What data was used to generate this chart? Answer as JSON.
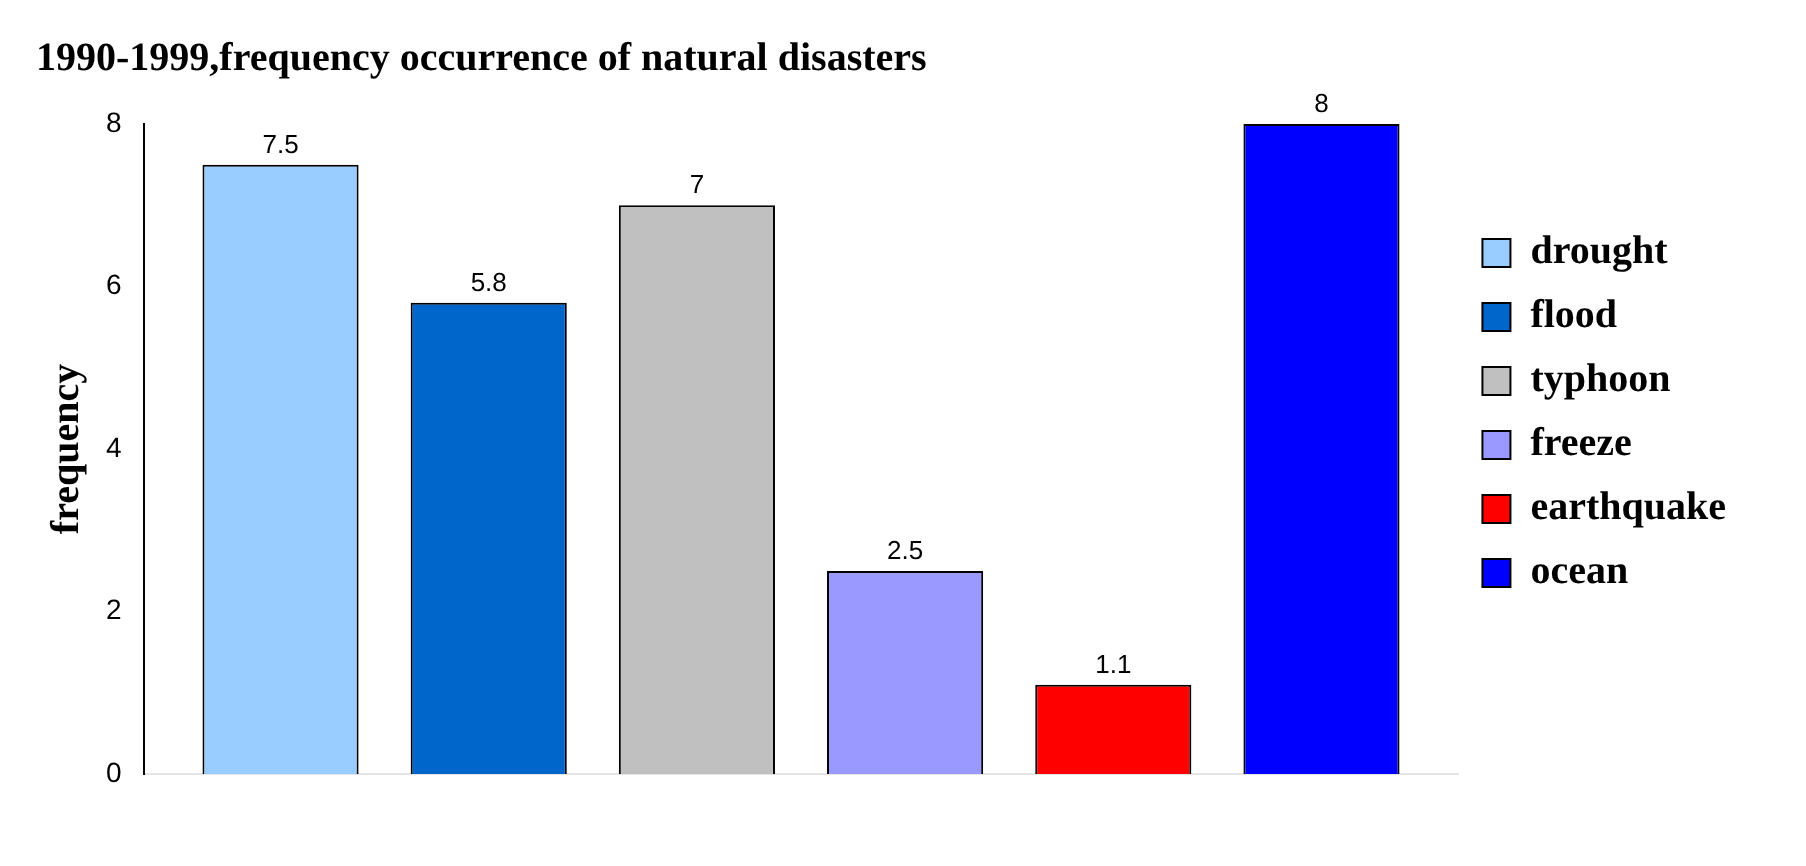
{
  "chart_data": {
    "type": "bar",
    "title": "1990-1999,frequency occurrence of natural disasters",
    "ylabel": "frequency",
    "categories": [
      null
    ],
    "series": [
      {
        "name": "drought",
        "color": "#99ccff",
        "values": [
          7.5
        ]
      },
      {
        "name": "flood",
        "color": "#0066cc",
        "values": [
          5.8
        ]
      },
      {
        "name": "typhoon",
        "color": "#c0c0c0",
        "values": [
          7
        ]
      },
      {
        "name": "freeze",
        "color": "#9999ff",
        "values": [
          2.5
        ]
      },
      {
        "name": "earthquake",
        "color": "#ff0000",
        "values": [
          1.1
        ]
      },
      {
        "name": "ocean",
        "color": "#0000ff",
        "values": [
          8
        ]
      }
    ],
    "ylim": [
      0,
      8
    ],
    "yticks": [
      0,
      2,
      4,
      6,
      8
    ],
    "grid": false,
    "legend": "right",
    "data_labels": true
  }
}
